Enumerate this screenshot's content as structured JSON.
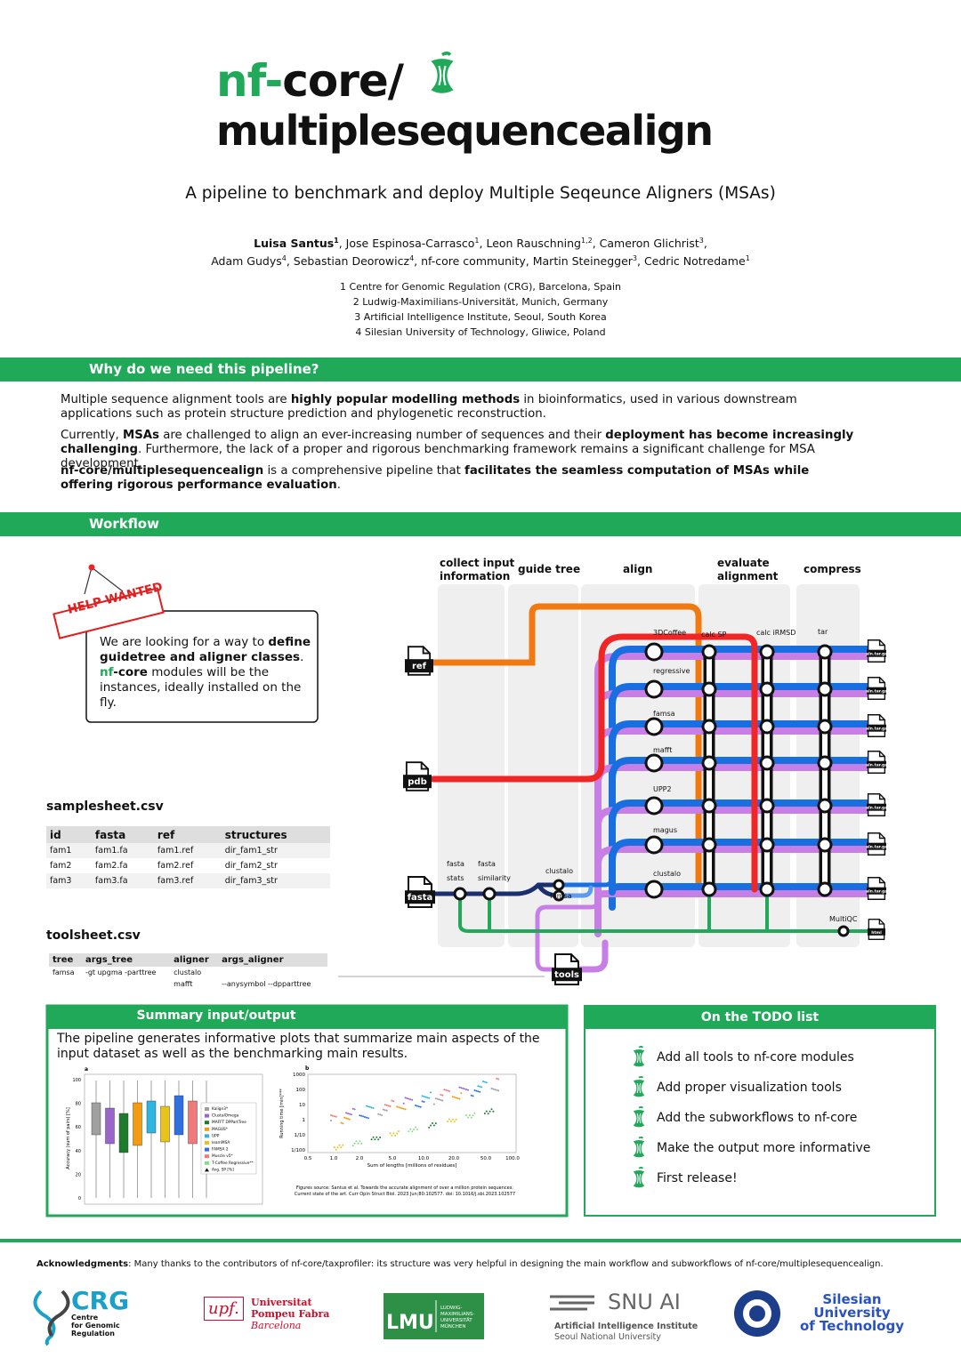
{
  "header": {
    "title_green": "nf-",
    "title_black": "core/",
    "title_line2": "multiplesequencealign",
    "subtitle": "A pipeline to benchmark and deploy Multiple Seqeunce Aligners (MSAs)"
  },
  "authors": {
    "lines": [
      [
        {
          "text": "Luisa Santus",
          "sup": "1"
        },
        {
          "text": ", Jose Espinosa-Carrasco",
          "sup": "1"
        },
        {
          "text": ", Leon Rauschning",
          "sup": "1,2"
        },
        {
          "text": ", Cameron Glichrist",
          "sup": "3"
        },
        {
          "text": ","
        }
      ],
      [
        {
          "text": "Adam Gudys",
          "sup": "4"
        },
        {
          "text": ", Sebastian Deorowicz",
          "sup": "4"
        },
        {
          "text": ", nf-core community, Martin Steinegger",
          "sup": "3"
        },
        {
          "text": ", Cedric Notredame",
          "sup": "1"
        }
      ]
    ]
  },
  "affiliations": [
    "1 Centre for Genomic Regulation (CRG), Barcelona, Spain",
    "2 Ludwig-Maximilians-Universität, Munich, Germany",
    "3 Artificial Intelligence Institute, Seoul, South Korea",
    "4 Silesian University of Technology, Gliwice, Poland"
  ],
  "why": {
    "title": "Why do we need this pipeline?",
    "paragraphs": [
      [
        "Multiple sequence alignment tools are ",
        "highly popular modelling methods",
        " in bioinformatics, used in various downstream applications such as protein structure prediction and phylogenetic reconstruction."
      ],
      [
        "Currently, ",
        "MSAs",
        " are challenged to align an ever-increasing number of sequences and their ",
        "deployment has become increasingly challenging",
        ". Furthermore, the lack of a proper and rigorous benchmarking framework remains a significant challenge for MSA development."
      ],
      [
        "nf-core/multiplesequencealign",
        " is a comprehensive pipeline that ",
        "facilitates the seamless computation of MSAs while offering rigorous performance evaluation",
        "."
      ]
    ]
  },
  "workflow": {
    "title": "Workflow",
    "help": {
      "stamp": "HELP WANTED",
      "text": [
        "We are looking for a way to ",
        "define guidetree and aligner classes",
        ". ",
        "nf",
        "-core",
        " modules will be the instances, ideally installed on the fly."
      ]
    },
    "samplesheet": {
      "title": "samplesheet.csv",
      "header": [
        "id",
        "fasta",
        "ref",
        "structures"
      ],
      "rows": [
        [
          "fam1",
          "fam1.fa",
          "fam1.ref",
          "dir_fam1_str"
        ],
        [
          "fam2",
          "fam2.fa",
          "fam2.ref",
          "dir_fam2_str"
        ],
        [
          "fam3",
          "fam3.fa",
          "fam3.ref",
          "dir_fam3_str"
        ]
      ]
    },
    "toolsheet": {
      "title": "toolsheet.csv",
      "header": [
        "tree",
        "args_tree",
        "aligner",
        "args_aligner"
      ],
      "rows": [
        [
          "famsa",
          "-gt upgma -parttree",
          "clustalo",
          null
        ],
        [
          null,
          null,
          "mafft",
          "--anysymbol --dpparttree"
        ]
      ]
    },
    "stages": [
      [
        "collect input",
        "information"
      ],
      [
        "guide tree"
      ],
      [
        "align"
      ],
      [
        "evaluate",
        "alignment"
      ],
      [
        "compress"
      ]
    ],
    "aligners": [
      "3DCoffee",
      "regressive",
      "famsa",
      "mafft",
      "UPP2",
      "magus",
      "clustalo"
    ],
    "evaluation": [
      "calc SP",
      "calc iRMSD",
      "tar"
    ],
    "prep": {
      "stats": [
        "fasta",
        "stats"
      ],
      "similarity": [
        "fasta",
        "similarity"
      ],
      "tree_clustalo": "clustalo",
      "tree_famsa": "famsa",
      "multiqc": "MultiQC"
    },
    "files": {
      "ref": "ref",
      "pdb": "pdb",
      "fasta": "fasta",
      "tools": "tools",
      "html": "html",
      "outputs": [
        "aln.tar.gz",
        "aln.tar.gz",
        "aln.tar.gz",
        "aln.tar.gz",
        "aln.tar.gz",
        "aln.tar.gz",
        "aln.tar.gz"
      ]
    }
  },
  "summary": {
    "title": "Summary input/output",
    "text": "The pipeline generates informative plots that summarize main aspects of the input dataset as well as the benchmarking main results.",
    "figure_a": {
      "label": "a",
      "ylabel": "Accuracy (sum of pairs) [%]",
      "yticks": [
        "100",
        "80",
        "60",
        "40",
        "20",
        "0"
      ],
      "legend": [
        "Kalign3*",
        "ClustalOmega",
        "MAFFT DPPartTree",
        "MAGUS*",
        "UPP",
        "learnMSA",
        "FAMSA 2",
        "Muscle v5*",
        "T-Coffee Regressive**",
        "Avg. SP  [%]"
      ]
    },
    "figure_b": {
      "label": "b",
      "ylabel": "Running time [min]***",
      "yticks": [
        "1000",
        "100",
        "10",
        "1",
        "1/10",
        "1/100"
      ],
      "xticks": [
        "0.5",
        "1.0",
        "2.0",
        "5.0",
        "10.0",
        "20.0",
        "50.0",
        "100.0"
      ],
      "xlabel": "Sum of lengths [millions of residues]"
    },
    "caption": [
      "Figures source: Santus et al. Towards the accurate alignment of over a million protein sequences:",
      "Current state of the art. Curr Opin Struct Biol. 2023 Jun;80:102577. doi: 10.1016/j.sbi.2023.102577"
    ]
  },
  "todo": {
    "title": "On the TODO list",
    "items": [
      "Add all tools to nf-core modules",
      "Add proper visualization tools",
      "Add the subworkflows to nf-core",
      "Make the output more informative",
      "First release!"
    ]
  },
  "acknowledgments": {
    "label": "Acknowledgments",
    "text": ": Many thanks to the contributors of nf-core/taxprofiler: its structure was very helpful in designing the main workflow and subworkflows of nf-core/multiplesequencealign."
  },
  "logos": {
    "crg": [
      "CRG",
      "Centre",
      "for Genomic",
      "Regulation"
    ],
    "upf": [
      "upf.",
      "Universitat",
      "Pompeu Fabra",
      "Barcelona"
    ],
    "lmu": [
      "LMU",
      "LUDWIG-",
      "MAXIMILIANS-",
      "UNIVERSITÄT",
      "MÜNCHEN"
    ],
    "snu": [
      "SNU AI",
      "Artificial Intelligence Institute",
      "Seoul National University"
    ],
    "silesian": [
      "Silesian",
      "University",
      "of Technology"
    ]
  }
}
